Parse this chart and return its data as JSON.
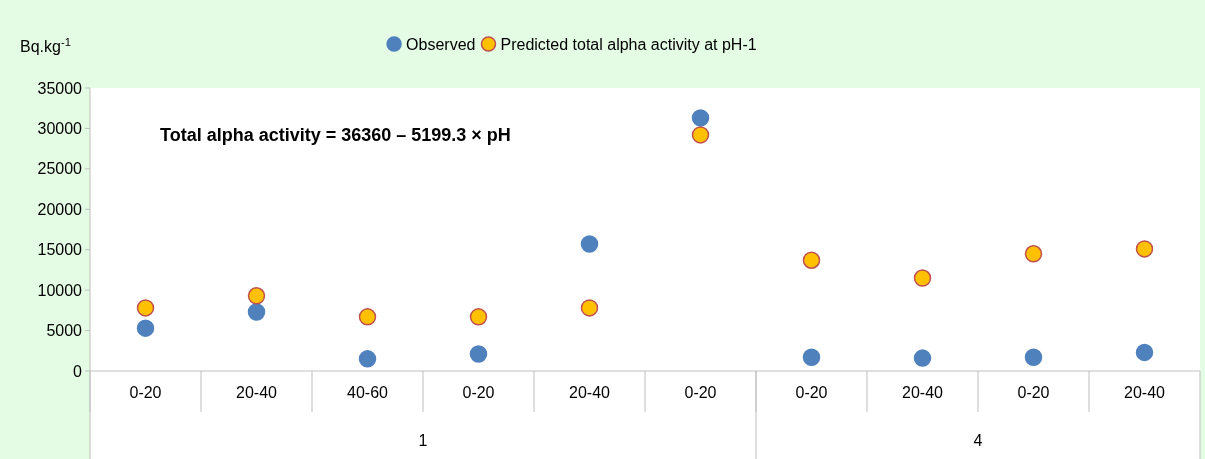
{
  "chart_data": {
    "type": "scatter",
    "ylabel": "Bq.kg$^{-1}$",
    "categories": [
      "0-20",
      "20-40",
      "40-60",
      "0-20",
      "20-40",
      "0-20",
      "0-20",
      "20-40",
      "0-20",
      "20-40"
    ],
    "series": [
      {
        "name": "Observed",
        "color": "#4f81bd",
        "values": [
          5300,
          7300,
          1500,
          2100,
          15700,
          31300,
          1700,
          1600,
          1700,
          2300
        ]
      },
      {
        "name": "Predicted total alpha activity at pH-1",
        "color": "#ffc000",
        "values": [
          7800,
          9300,
          6700,
          6700,
          7800,
          29200,
          13700,
          11500,
          14500,
          15100
        ]
      }
    ],
    "ylim": [
      0,
      35000
    ],
    "yticks": [
      0,
      5000,
      10000,
      15000,
      20000,
      25000,
      30000,
      35000
    ],
    "grid": false,
    "legend": "top",
    "marker": "circle",
    "annotations": [
      "Total alpha activity = 36360 – 5199.3 × pH",
      "1",
      "4"
    ]
  }
}
